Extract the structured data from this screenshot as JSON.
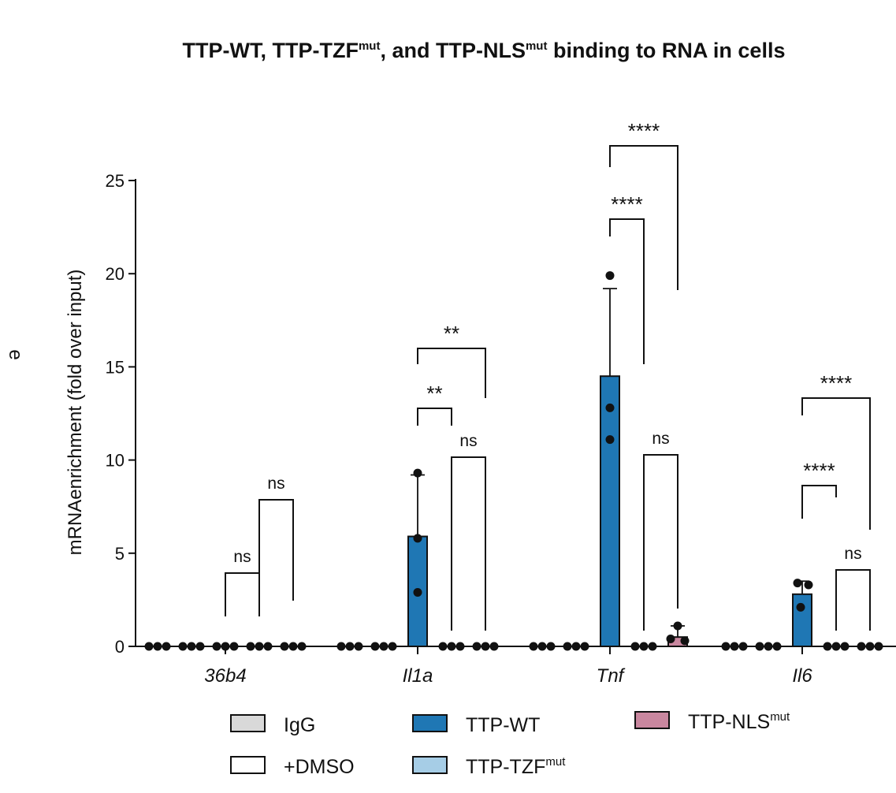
{
  "chart_data": {
    "type": "bar",
    "title": "TTP-WT, TTP-TZF",
    "title_sup_1": "mut",
    "title_mid": ", and TTP-NLS",
    "title_sup_2": "mut",
    "title_end": " binding to RNA in cells",
    "ylabel": "mRNAenrichment (fold over input)",
    "ylim": [
      0,
      25
    ],
    "yticks": [
      "0",
      "5",
      "10",
      "15",
      "20",
      "25"
    ],
    "categories": [
      "36b4",
      "Il1a",
      "Tnf",
      "Il6"
    ],
    "series": [
      {
        "name": "IgG",
        "color": "#d9d9d9",
        "values": [
          0,
          0,
          0,
          0
        ],
        "points": [
          [
            0,
            0,
            0
          ],
          [
            0,
            0,
            0
          ],
          [
            0,
            0,
            0
          ],
          [
            0,
            0,
            0
          ]
        ]
      },
      {
        "name": "+DMSO",
        "color": "#ffffff",
        "values": [
          0,
          0,
          0,
          0
        ],
        "points": [
          [
            0,
            0,
            0
          ],
          [
            0,
            0,
            0
          ],
          [
            0,
            0,
            0
          ],
          [
            0,
            0,
            0
          ]
        ]
      },
      {
        "name": "TTP-WT",
        "color": "#1f77b4",
        "values": [
          0,
          5.9,
          14.5,
          2.8
        ],
        "errors": [
          0,
          3.3,
          4.7,
          0.7
        ],
        "points": [
          [
            0,
            0,
            0
          ],
          [
            9.3,
            5.8,
            2.9
          ],
          [
            19.9,
            12.8,
            11.1
          ],
          [
            3.4,
            3.3,
            2.1
          ]
        ]
      },
      {
        "name": "TTP-TZF",
        "name_sup": "mut",
        "color": "#a6cde6",
        "values": [
          0,
          0,
          0,
          0
        ],
        "points": [
          [
            0,
            0,
            0
          ],
          [
            0,
            0,
            0
          ],
          [
            0,
            0,
            0
          ],
          [
            0,
            0,
            0
          ]
        ]
      },
      {
        "name": "TTP-NLS",
        "name_sup": "mut",
        "color": "#c9879f",
        "values": [
          0,
          0,
          0.5,
          0
        ],
        "errors": [
          0,
          0,
          0.6,
          0
        ],
        "points": [
          [
            0,
            0,
            0
          ],
          [
            0,
            0,
            0
          ],
          [
            1.1,
            0.4,
            0.3
          ],
          [
            0,
            0,
            0
          ]
        ]
      }
    ],
    "annotations": [
      {
        "category": "36b4",
        "from": 2,
        "to": 3,
        "label": "ns"
      },
      {
        "category": "36b4",
        "from": 3,
        "to": 4,
        "label": "ns"
      },
      {
        "category": "Il1a",
        "from": 2,
        "to": 3,
        "label": "**"
      },
      {
        "category": "Il1a",
        "from": 2,
        "to": 4,
        "label": "**"
      },
      {
        "category": "Il1a",
        "from": 3,
        "to": 4,
        "label": "ns"
      },
      {
        "category": "Tnf",
        "from": 2,
        "to": 3,
        "label": "****"
      },
      {
        "category": "Tnf",
        "from": 2,
        "to": 4,
        "label": "****"
      },
      {
        "category": "Tnf",
        "from": 3,
        "to": 4,
        "label": "ns"
      },
      {
        "category": "Il6",
        "from": 2,
        "to": 3,
        "label": "****"
      },
      {
        "category": "Il6",
        "from": 2,
        "to": 4,
        "label": "****"
      },
      {
        "category": "Il6",
        "from": 3,
        "to": 4,
        "label": "ns"
      }
    ],
    "legend_position": "bottom",
    "stray_glyph": "e",
    "grid": false
  }
}
